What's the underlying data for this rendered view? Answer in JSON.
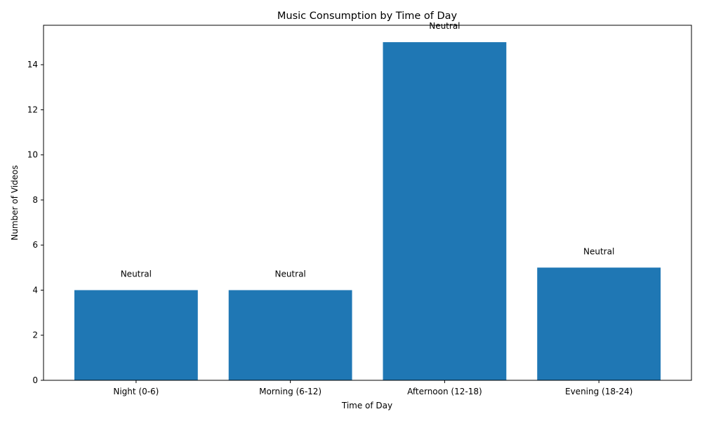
{
  "chart_data": {
    "type": "bar",
    "title": "Music Consumption by Time of Day",
    "xlabel": "Time of Day",
    "ylabel": "Number of Videos",
    "categories": [
      "Night (0-6)",
      "Morning (6-12)",
      "Afternoon (12-18)",
      "Evening (18-24)"
    ],
    "values": [
      4,
      4,
      15,
      5
    ],
    "bar_labels": [
      "Neutral",
      "Neutral",
      "Neutral",
      "Neutral"
    ],
    "ylim": [
      0,
      15.75
    ],
    "yticks": [
      0,
      2,
      4,
      6,
      8,
      10,
      12,
      14
    ],
    "bar_color": "#1f77b4",
    "grid": false,
    "legend": "none"
  }
}
